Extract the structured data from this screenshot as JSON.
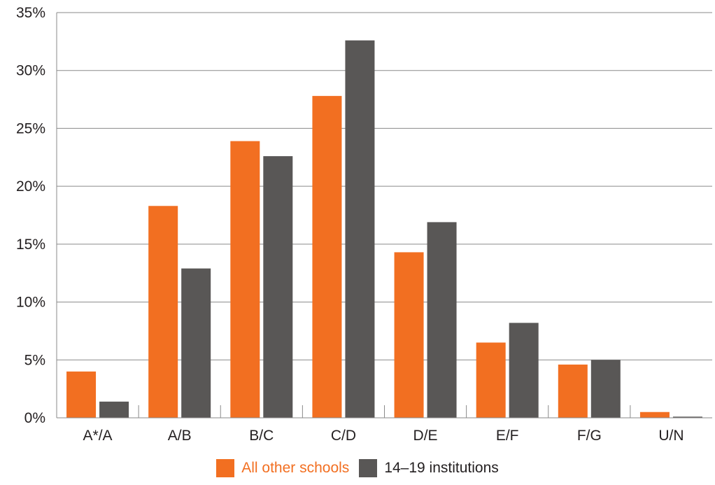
{
  "chart_data": {
    "type": "bar",
    "categories": [
      "A*/A",
      "A/B",
      "B/C",
      "C/D",
      "D/E",
      "E/F",
      "F/G",
      "U/N"
    ],
    "series": [
      {
        "name": "All other schools",
        "color": "#f26f21",
        "values": [
          4.0,
          18.3,
          23.9,
          27.8,
          14.3,
          6.5,
          4.6,
          0.5
        ]
      },
      {
        "name": "14–19 institutions",
        "color": "#595756",
        "values": [
          1.4,
          12.9,
          22.6,
          32.6,
          16.9,
          8.2,
          5.0,
          0.1
        ]
      }
    ],
    "yticks": [
      "0%",
      "5%",
      "10%",
      "15%",
      "20%",
      "25%",
      "30%",
      "35%"
    ],
    "ylim": [
      0,
      35
    ],
    "grid": true,
    "legend": "bottom-center",
    "title": "",
    "xlabel": "",
    "ylabel": ""
  },
  "legend": {
    "items": [
      {
        "label": "All other schools",
        "color": "#f26f21",
        "text_color": "#f26f21"
      },
      {
        "label": "14–19 institutions",
        "color": "#595756",
        "text_color": "#231f20"
      }
    ]
  }
}
